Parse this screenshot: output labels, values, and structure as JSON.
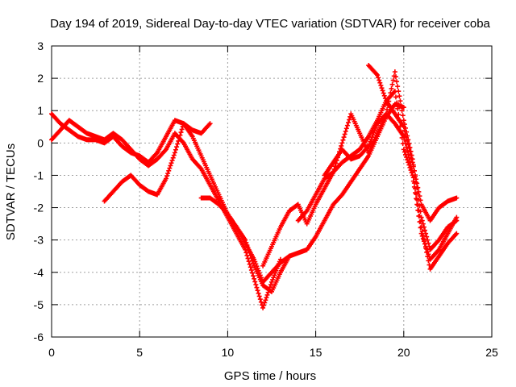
{
  "chart_data": {
    "type": "scatter",
    "title": "Day 194 of 2019, Sidereal Day-to-day VTEC variation (SDTVAR) for receiver coba",
    "xlabel": "GPS time / hours",
    "ylabel": "SDTVAR / TECUs",
    "xlim": [
      0,
      25
    ],
    "ylim": [
      -6,
      3
    ],
    "xticks": [
      0,
      5,
      10,
      15,
      20,
      25
    ],
    "yticks": [
      -6,
      -5,
      -4,
      -3,
      -2,
      -1,
      0,
      1,
      2,
      3
    ],
    "grid": true,
    "marker": "+",
    "color": "#ff0000",
    "series": [
      {
        "x": [
          0,
          0.5,
          1,
          1.5,
          2,
          2.5,
          3,
          3.5,
          4,
          4.5,
          5,
          5.5,
          6,
          6.5,
          7,
          7.5,
          8,
          8.5,
          9,
          9.5,
          10,
          10.5,
          11,
          11.5,
          12,
          12.5,
          13,
          13.5
        ],
        "y": [
          0.9,
          0.6,
          0.4,
          0.2,
          0.1,
          0.1,
          0.0,
          0.2,
          -0.1,
          -0.3,
          -0.4,
          -0.6,
          -0.3,
          0.2,
          0.7,
          0.6,
          0.2,
          -0.4,
          -1.0,
          -1.6,
          -2.2,
          -2.6,
          -3.0,
          -3.8,
          -4.4,
          -4.6,
          -4.0,
          -3.5
        ]
      },
      {
        "x": [
          0,
          0.5,
          1,
          1.5,
          2,
          2.5,
          3,
          3.5,
          4,
          4.5,
          5,
          5.5,
          6,
          6.5,
          7,
          7.5,
          8,
          8.5,
          9,
          9.5,
          10,
          10.5,
          11,
          11.5,
          12,
          12.5,
          13
        ],
        "y": [
          0.1,
          0.4,
          0.7,
          0.5,
          0.3,
          0.2,
          0.1,
          0.3,
          0.1,
          -0.2,
          -0.5,
          -0.7,
          -0.5,
          -0.2,
          0.3,
          0.0,
          -0.5,
          -0.8,
          -1.3,
          -1.8,
          -2.3,
          -2.8,
          -3.3,
          -4.2,
          -5.1,
          -4.3,
          -3.6
        ]
      },
      {
        "x": [
          3,
          3.5,
          4,
          4.5,
          5,
          5.5,
          6,
          6.5,
          7,
          7.5,
          8,
          8.5,
          9
        ],
        "y": [
          -1.8,
          -1.5,
          -1.2,
          -1.0,
          -1.3,
          -1.5,
          -1.6,
          -1.1,
          -0.3,
          0.6,
          0.4,
          0.3,
          0.6
        ]
      },
      {
        "x": [
          8.5,
          9,
          9.5,
          10,
          10.5,
          11,
          11.5,
          12,
          12.5,
          13,
          13.5,
          14,
          14.5,
          15,
          15.5,
          16,
          16.5,
          17,
          17.5,
          18,
          18.5,
          19,
          19.5,
          20
        ],
        "y": [
          -1.7,
          -1.7,
          -1.9,
          -2.2,
          -2.6,
          -3.1,
          -3.6,
          -4.3,
          -4.0,
          -3.7,
          -3.5,
          -3.4,
          -3.3,
          -2.9,
          -2.4,
          -1.9,
          -1.6,
          -1.2,
          -0.8,
          -0.4,
          0.2,
          0.8,
          1.2,
          1.1
        ]
      },
      {
        "x": [
          12,
          12.5,
          13,
          13.5,
          14,
          14.5,
          15,
          15.5,
          16,
          16.5,
          17,
          17.5,
          18,
          18.5,
          19,
          19.5,
          20,
          20.5,
          21,
          21.5,
          22,
          22.5,
          23
        ],
        "y": [
          -3.8,
          -3.2,
          -2.6,
          -2.1,
          -1.9,
          -2.5,
          -1.9,
          -1.4,
          -0.9,
          -0.6,
          -0.4,
          -0.2,
          0.2,
          0.7,
          1.3,
          1.6,
          -0.2,
          -1.0,
          -2.8,
          -3.6,
          -3.3,
          -2.8,
          -2.3
        ]
      },
      {
        "x": [
          14,
          14.5,
          15,
          15.5,
          16,
          16.5,
          17,
          17.5,
          18,
          18.5,
          19,
          19.5,
          20,
          20.5,
          21,
          21.5,
          22,
          22.5,
          23
        ],
        "y": [
          -2.4,
          -2.1,
          -1.6,
          -1.1,
          -0.9,
          0.0,
          0.9,
          0.3,
          -0.3,
          0.3,
          0.9,
          2.2,
          0.7,
          -0.5,
          -2.3,
          -3.3,
          -3.0,
          -2.6,
          -2.4
        ]
      },
      {
        "x": [
          18,
          18.5,
          19,
          19.5,
          20,
          20.5,
          21,
          21.5,
          22,
          22.5,
          23
        ],
        "y": [
          2.4,
          2.1,
          1.3,
          0.9,
          0.5,
          -0.6,
          -1.9,
          -2.4,
          -2.0,
          -1.8,
          -1.7
        ]
      },
      {
        "x": [
          15.5,
          16,
          16.5,
          17,
          17.5,
          18,
          18.5,
          19,
          19.5,
          20,
          20.5,
          21,
          21.5,
          22,
          22.5,
          23
        ],
        "y": [
          -1.0,
          -0.6,
          -0.2,
          -0.5,
          -0.4,
          -0.1,
          0.6,
          0.9,
          0.6,
          0.2,
          -0.9,
          -2.6,
          -3.9,
          -3.5,
          -3.1,
          -2.8
        ]
      }
    ]
  }
}
